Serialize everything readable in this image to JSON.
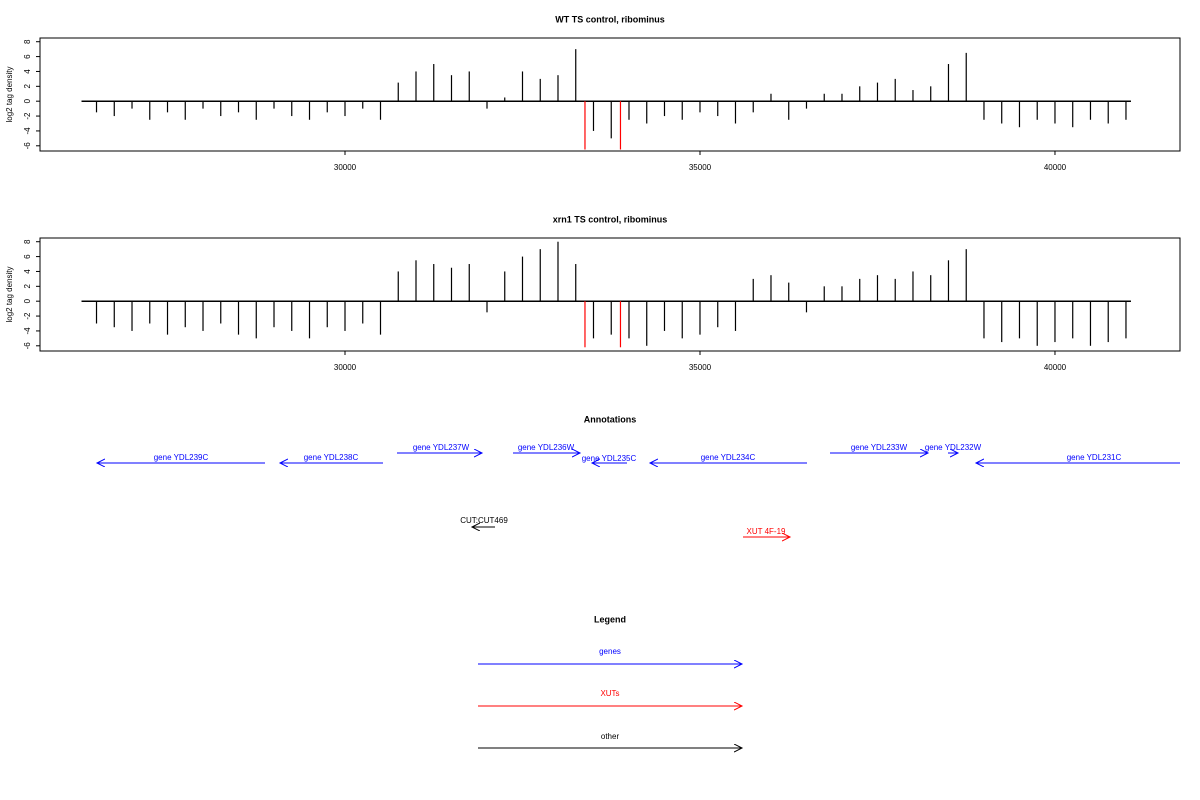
{
  "chart_data": [
    {
      "type": "bar",
      "title": "WT TS control, ribominus",
      "y_label": "log2 tag density",
      "xlim": [
        25704,
        41761
      ],
      "xticks": [
        30000,
        35000,
        40000
      ],
      "ylim": [
        -6.7,
        8.5
      ],
      "yticks": [
        -6,
        -4,
        -2,
        0,
        2,
        4,
        6,
        8
      ],
      "series": [
        {
          "color": "#000000",
          "x": [
            26500,
            26750,
            27000,
            27250,
            27500,
            27750,
            28000,
            28250,
            28500,
            28750,
            29000,
            29250,
            29500,
            29750,
            30000,
            30250,
            30500,
            30750,
            31000,
            31250,
            31500,
            31750,
            32000,
            32250,
            32500,
            32750,
            33000,
            33250,
            33500,
            33750,
            34000,
            34250,
            34500,
            34750,
            35000,
            35250,
            35500,
            35750,
            36000,
            36250,
            36500,
            36750,
            37000,
            37250,
            37500,
            37750,
            38000,
            38250,
            38500,
            38750,
            39000,
            39250,
            39500,
            39750,
            40000,
            40250,
            40500,
            40750,
            41000
          ],
          "values": [
            -1.5,
            -2,
            -1,
            -2.5,
            -1.5,
            -2.5,
            -1,
            -2,
            -1.5,
            -2.5,
            -1,
            -2,
            -2.5,
            -1.5,
            -2,
            -1,
            -2.5,
            2.5,
            4,
            5,
            3.5,
            4,
            -1,
            0.5,
            4,
            3,
            3.5,
            7,
            -4,
            -5,
            -2.5,
            -3,
            -2,
            -2.5,
            -1.5,
            -2,
            -3,
            -1.5,
            1,
            -2.5,
            -1,
            1,
            1,
            2,
            2.5,
            3,
            1.5,
            2,
            5,
            6.5,
            -2.5,
            -3,
            -3.5,
            -2.5,
            -3,
            -3.5,
            -2.5,
            -3,
            -2.5
          ]
        },
        {
          "color": "#ff0000",
          "x": [
            33380,
            33880
          ],
          "values": [
            -6.5,
            -6.5
          ]
        }
      ]
    },
    {
      "type": "bar",
      "title": "xrn1 TS control, ribominus",
      "y_label": "log2 tag density",
      "xlim": [
        25704,
        41761
      ],
      "xticks": [
        30000,
        35000,
        40000
      ],
      "ylim": [
        -6.7,
        8.5
      ],
      "yticks": [
        -6,
        -4,
        -2,
        0,
        2,
        4,
        6,
        8
      ],
      "series": [
        {
          "color": "#000000",
          "x": [
            26500,
            26750,
            27000,
            27250,
            27500,
            27750,
            28000,
            28250,
            28500,
            28750,
            29000,
            29250,
            29500,
            29750,
            30000,
            30250,
            30500,
            30750,
            31000,
            31250,
            31500,
            31750,
            32000,
            32250,
            32500,
            32750,
            33000,
            33250,
            33500,
            33750,
            34000,
            34250,
            34500,
            34750,
            35000,
            35250,
            35500,
            35750,
            36000,
            36250,
            36500,
            36750,
            37000,
            37250,
            37500,
            37750,
            38000,
            38250,
            38500,
            38750,
            39000,
            39250,
            39500,
            39750,
            40000,
            40250,
            40500,
            40750,
            41000
          ],
          "values": [
            -3,
            -3.5,
            -4,
            -3,
            -4.5,
            -3.5,
            -4,
            -3,
            -4.5,
            -5,
            -3.5,
            -4,
            -5,
            -3.5,
            -4,
            -3,
            -4.5,
            4,
            5.5,
            5,
            4.5,
            5,
            -1.5,
            4,
            6,
            7,
            8,
            5,
            -5,
            -4.5,
            -5,
            -6,
            -4,
            -5,
            -4.5,
            -3.5,
            -4,
            3,
            3.5,
            2.5,
            -1.5,
            2,
            2,
            3,
            3.5,
            3,
            4,
            3.5,
            5.5,
            7,
            -5,
            -5.5,
            -5,
            -6,
            -5.5,
            -5,
            -6,
            -5.5,
            -5
          ]
        },
        {
          "color": "#ff0000",
          "x": [
            33380,
            33880
          ],
          "values": [
            -6.2,
            -6.2
          ]
        }
      ]
    }
  ],
  "annotations": {
    "title": "Annotations",
    "genes": [
      "gene YDL239C",
      "gene YDL238C",
      "gene YDL237W",
      "gene YDL236W",
      "gene YDL235C",
      "gene YDL234C",
      "gene YDL233W",
      "gene YDL232W",
      "gene YDL231C"
    ],
    "cut": "CUT:CUT469",
    "xut": "XUT 4F-19"
  },
  "legend": {
    "title": "Legend",
    "entries": [
      "genes",
      "XUTs",
      "other"
    ]
  }
}
